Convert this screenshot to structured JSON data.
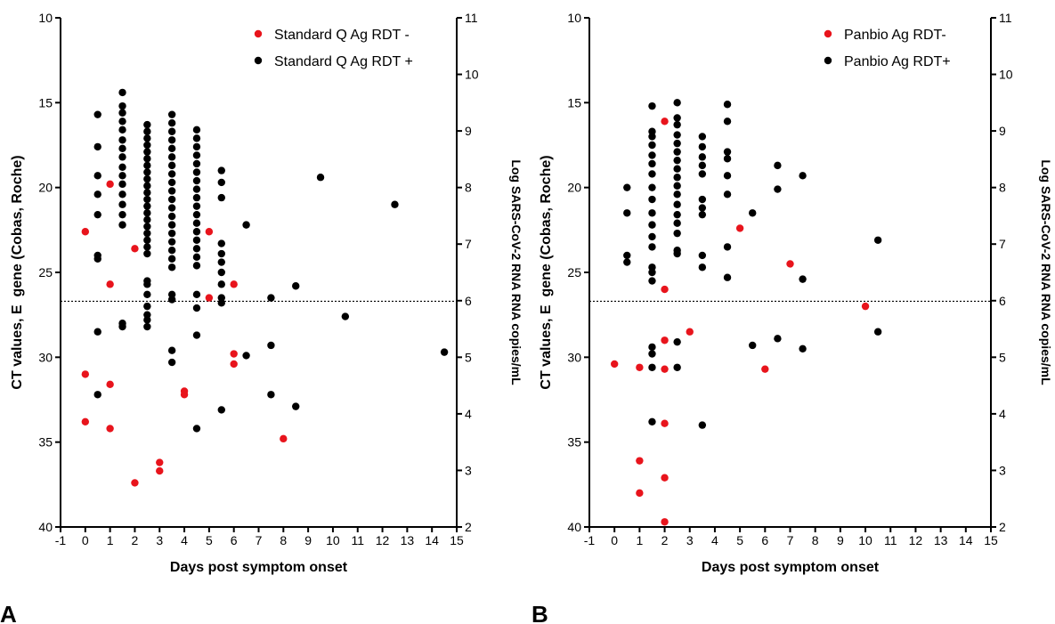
{
  "chart_data": [
    {
      "type": "scatter",
      "panel_label": "A",
      "xlabel": "Days post symptom onset",
      "ylabel": "CT values, E  gene (Cobas, Roche)",
      "y2label": "Log SARS-CoV-2 RNA RNA copies/mL",
      "xlim": [
        -1,
        15
      ],
      "ylim": [
        10,
        40
      ],
      "y_inverted": true,
      "y2lim": [
        2,
        11
      ],
      "xticks": [
        "-1",
        "0",
        "1",
        "2",
        "3",
        "4",
        "5",
        "6",
        "7",
        "8",
        "9",
        "10",
        "11",
        "12",
        "13",
        "14",
        "15"
      ],
      "yticks": [
        "10",
        "15",
        "20",
        "25",
        "30",
        "35",
        "40"
      ],
      "y2ticks": [
        "2",
        "3",
        "4",
        "5",
        "6",
        "7",
        "8",
        "9",
        "10",
        "11"
      ],
      "reference_line_ct": 26.7,
      "legend_position": "top-right",
      "grid": false,
      "series": [
        {
          "name": "Standard Q Ag RDT -",
          "color": "#e8141c",
          "points": [
            [
              0,
              22.6
            ],
            [
              0,
              31.0
            ],
            [
              0,
              33.8
            ],
            [
              1,
              19.8
            ],
            [
              1,
              25.7
            ],
            [
              1,
              31.6
            ],
            [
              1,
              34.2
            ],
            [
              2,
              23.6
            ],
            [
              2,
              37.4
            ],
            [
              3,
              36.2
            ],
            [
              3,
              36.7
            ],
            [
              4,
              32.0
            ],
            [
              4,
              32.2
            ],
            [
              5,
              22.6
            ],
            [
              5,
              26.5
            ],
            [
              6,
              25.7
            ],
            [
              6,
              29.8
            ],
            [
              6,
              30.4
            ],
            [
              8,
              34.8
            ]
          ]
        },
        {
          "name": "Standard Q Ag RDT +",
          "color": "#000000",
          "points": [
            [
              0.5,
              15.7
            ],
            [
              0.5,
              17.6
            ],
            [
              0.5,
              19.3
            ],
            [
              0.5,
              20.4
            ],
            [
              0.5,
              21.6
            ],
            [
              0.5,
              24.0
            ],
            [
              0.5,
              24.2
            ],
            [
              0.5,
              28.5
            ],
            [
              0.5,
              32.2
            ],
            [
              1.5,
              14.4
            ],
            [
              1.5,
              15.2
            ],
            [
              1.5,
              15.6
            ],
            [
              1.5,
              16.1
            ],
            [
              1.5,
              16.6
            ],
            [
              1.5,
              17.2
            ],
            [
              1.5,
              17.7
            ],
            [
              1.5,
              18.2
            ],
            [
              1.5,
              18.8
            ],
            [
              1.5,
              19.3
            ],
            [
              1.5,
              19.8
            ],
            [
              1.5,
              20.4
            ],
            [
              1.5,
              21.0
            ],
            [
              1.5,
              21.6
            ],
            [
              1.5,
              22.2
            ],
            [
              1.5,
              28.0
            ],
            [
              1.5,
              28.2
            ],
            [
              2.5,
              16.3
            ],
            [
              2.5,
              16.7
            ],
            [
              2.5,
              17.1
            ],
            [
              2.5,
              17.5
            ],
            [
              2.5,
              17.9
            ],
            [
              2.5,
              18.3
            ],
            [
              2.5,
              18.7
            ],
            [
              2.5,
              19.1
            ],
            [
              2.5,
              19.5
            ],
            [
              2.5,
              19.9
            ],
            [
              2.5,
              20.3
            ],
            [
              2.5,
              20.7
            ],
            [
              2.5,
              21.1
            ],
            [
              2.5,
              21.5
            ],
            [
              2.5,
              21.9
            ],
            [
              2.5,
              22.3
            ],
            [
              2.5,
              22.7
            ],
            [
              2.5,
              23.1
            ],
            [
              2.5,
              23.5
            ],
            [
              2.5,
              23.9
            ],
            [
              2.5,
              25.5
            ],
            [
              2.5,
              25.7
            ],
            [
              2.5,
              26.3
            ],
            [
              2.5,
              27.0
            ],
            [
              2.5,
              27.5
            ],
            [
              2.5,
              27.8
            ],
            [
              2.5,
              28.2
            ],
            [
              3.5,
              15.7
            ],
            [
              3.5,
              16.2
            ],
            [
              3.5,
              16.7
            ],
            [
              3.5,
              17.2
            ],
            [
              3.5,
              17.7
            ],
            [
              3.5,
              18.2
            ],
            [
              3.5,
              18.7
            ],
            [
              3.5,
              19.2
            ],
            [
              3.5,
              19.7
            ],
            [
              3.5,
              20.2
            ],
            [
              3.5,
              20.7
            ],
            [
              3.5,
              21.2
            ],
            [
              3.5,
              21.7
            ],
            [
              3.5,
              22.2
            ],
            [
              3.5,
              22.7
            ],
            [
              3.5,
              23.2
            ],
            [
              3.5,
              23.7
            ],
            [
              3.5,
              24.2
            ],
            [
              3.5,
              24.7
            ],
            [
              3.5,
              26.3
            ],
            [
              3.5,
              26.6
            ],
            [
              3.5,
              29.6
            ],
            [
              3.5,
              30.3
            ],
            [
              4.5,
              16.6
            ],
            [
              4.5,
              17.1
            ],
            [
              4.5,
              17.6
            ],
            [
              4.5,
              18.1
            ],
            [
              4.5,
              18.6
            ],
            [
              4.5,
              19.1
            ],
            [
              4.5,
              19.6
            ],
            [
              4.5,
              20.1
            ],
            [
              4.5,
              20.6
            ],
            [
              4.5,
              21.1
            ],
            [
              4.5,
              21.6
            ],
            [
              4.5,
              22.1
            ],
            [
              4.5,
              22.6
            ],
            [
              4.5,
              23.1
            ],
            [
              4.5,
              23.6
            ],
            [
              4.5,
              24.1
            ],
            [
              4.5,
              24.6
            ],
            [
              4.5,
              26.3
            ],
            [
              4.5,
              27.1
            ],
            [
              4.5,
              28.7
            ],
            [
              4.5,
              34.2
            ],
            [
              5.5,
              19.0
            ],
            [
              5.5,
              19.7
            ],
            [
              5.5,
              20.6
            ],
            [
              5.5,
              23.3
            ],
            [
              5.5,
              23.9
            ],
            [
              5.5,
              24.4
            ],
            [
              5.5,
              25.0
            ],
            [
              5.5,
              25.7
            ],
            [
              5.5,
              26.5
            ],
            [
              5.5,
              26.8
            ],
            [
              5.5,
              33.1
            ],
            [
              6.5,
              22.2
            ],
            [
              6.5,
              29.9
            ],
            [
              7.5,
              26.5
            ],
            [
              7.5,
              29.3
            ],
            [
              7.5,
              32.2
            ],
            [
              8.5,
              25.8
            ],
            [
              8.5,
              32.9
            ],
            [
              9.5,
              19.4
            ],
            [
              10.5,
              27.6
            ],
            [
              12.5,
              21.0
            ],
            [
              14.5,
              29.7
            ]
          ]
        }
      ]
    },
    {
      "type": "scatter",
      "panel_label": "B",
      "xlabel": "Days post symptom onset",
      "ylabel": "CT values, E  gene (Cobas, Roche)",
      "y2label": "Log SARS-CoV-2 RNA RNA copies/mL",
      "xlim": [
        -1,
        15
      ],
      "ylim": [
        10,
        40
      ],
      "y_inverted": true,
      "y2lim": [
        2,
        11
      ],
      "xticks": [
        "-1",
        "0",
        "1",
        "2",
        "3",
        "4",
        "5",
        "6",
        "7",
        "8",
        "9",
        "10",
        "11",
        "12",
        "13",
        "14",
        "15"
      ],
      "yticks": [
        "10",
        "15",
        "20",
        "25",
        "30",
        "35",
        "40"
      ],
      "y2ticks": [
        "2",
        "3",
        "4",
        "5",
        "6",
        "7",
        "8",
        "9",
        "10",
        "11"
      ],
      "reference_line_ct": 26.7,
      "legend_position": "top-right",
      "grid": false,
      "series": [
        {
          "name": "Panbio Ag RDT-",
          "color": "#e8141c",
          "points": [
            [
              0,
              30.4
            ],
            [
              1,
              30.6
            ],
            [
              1,
              36.1
            ],
            [
              1,
              38.0
            ],
            [
              2,
              16.1
            ],
            [
              2,
              26.0
            ],
            [
              2,
              29.0
            ],
            [
              2,
              30.7
            ],
            [
              2,
              33.9
            ],
            [
              2,
              37.1
            ],
            [
              2,
              39.7
            ],
            [
              3,
              28.5
            ],
            [
              5,
              22.4
            ],
            [
              6,
              30.7
            ],
            [
              7,
              24.5
            ],
            [
              10,
              27.0
            ]
          ]
        },
        {
          "name": "Panbio Ag RDT+",
          "color": "#000000",
          "points": [
            [
              0.5,
              20.0
            ],
            [
              0.5,
              21.5
            ],
            [
              0.5,
              24.0
            ],
            [
              0.5,
              24.4
            ],
            [
              1.5,
              15.2
            ],
            [
              1.5,
              16.7
            ],
            [
              1.5,
              17.0
            ],
            [
              1.5,
              17.5
            ],
            [
              1.5,
              18.1
            ],
            [
              1.5,
              18.6
            ],
            [
              1.5,
              19.2
            ],
            [
              1.5,
              20.0
            ],
            [
              1.5,
              20.7
            ],
            [
              1.5,
              21.5
            ],
            [
              1.5,
              22.2
            ],
            [
              1.5,
              22.9
            ],
            [
              1.5,
              23.5
            ],
            [
              1.5,
              24.7
            ],
            [
              1.5,
              25.0
            ],
            [
              1.5,
              25.5
            ],
            [
              1.5,
              29.4
            ],
            [
              1.5,
              29.8
            ],
            [
              1.5,
              30.6
            ],
            [
              1.5,
              33.8
            ],
            [
              2.5,
              15.0
            ],
            [
              2.5,
              15.9
            ],
            [
              2.5,
              16.3
            ],
            [
              2.5,
              16.9
            ],
            [
              2.5,
              17.4
            ],
            [
              2.5,
              17.9
            ],
            [
              2.5,
              18.4
            ],
            [
              2.5,
              18.9
            ],
            [
              2.5,
              19.4
            ],
            [
              2.5,
              19.9
            ],
            [
              2.5,
              20.4
            ],
            [
              2.5,
              21.0
            ],
            [
              2.5,
              21.6
            ],
            [
              2.5,
              22.1
            ],
            [
              2.5,
              22.7
            ],
            [
              2.5,
              23.7
            ],
            [
              2.5,
              23.9
            ],
            [
              2.5,
              29.1
            ],
            [
              2.5,
              30.6
            ],
            [
              3.5,
              17.0
            ],
            [
              3.5,
              17.6
            ],
            [
              3.5,
              18.2
            ],
            [
              3.5,
              18.7
            ],
            [
              3.5,
              19.2
            ],
            [
              3.5,
              20.7
            ],
            [
              3.5,
              21.2
            ],
            [
              3.5,
              21.6
            ],
            [
              3.5,
              24.0
            ],
            [
              3.5,
              24.7
            ],
            [
              3.5,
              34.0
            ],
            [
              4.5,
              15.1
            ],
            [
              4.5,
              16.1
            ],
            [
              4.5,
              17.9
            ],
            [
              4.5,
              18.3
            ],
            [
              4.5,
              19.3
            ],
            [
              4.5,
              20.4
            ],
            [
              4.5,
              23.5
            ],
            [
              4.5,
              25.3
            ],
            [
              5.5,
              21.5
            ],
            [
              5.5,
              29.3
            ],
            [
              6.5,
              18.7
            ],
            [
              6.5,
              20.1
            ],
            [
              6.5,
              28.9
            ],
            [
              7.5,
              19.3
            ],
            [
              7.5,
              25.4
            ],
            [
              7.5,
              29.5
            ],
            [
              10.5,
              23.1
            ],
            [
              10.5,
              28.5
            ]
          ]
        }
      ]
    }
  ]
}
